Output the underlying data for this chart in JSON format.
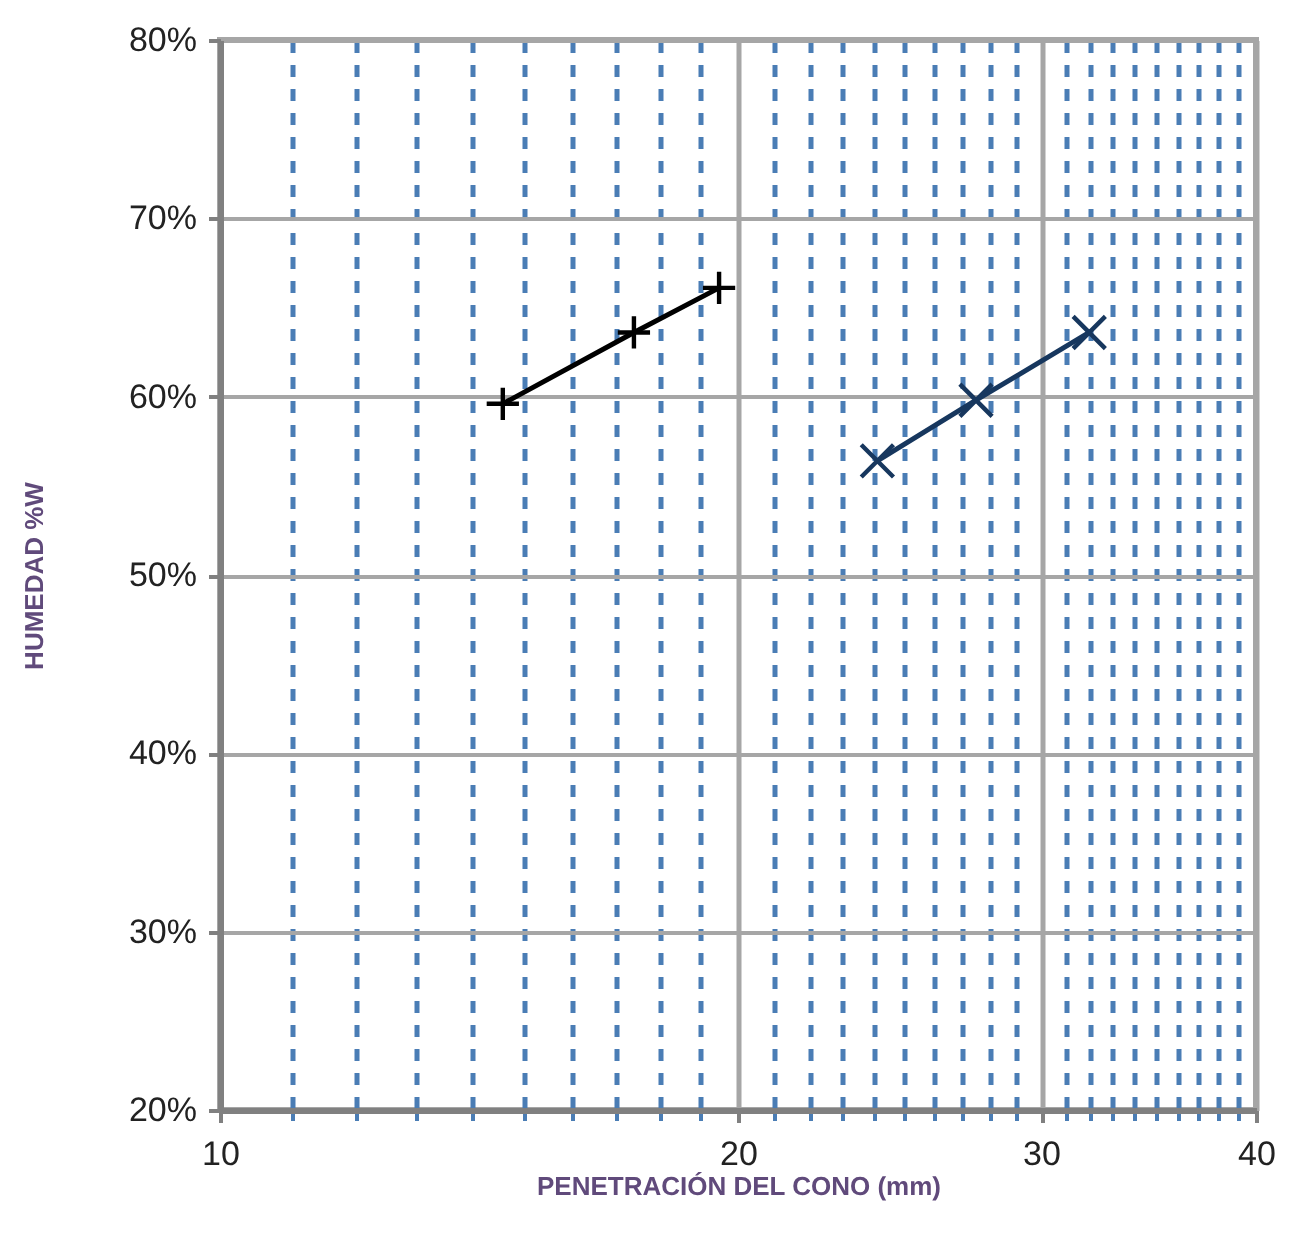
{
  "chart_data": {
    "type": "line",
    "xlabel": "PENETRACIÓN DEL CONO (mm)",
    "ylabel": "HUMEDAD %W",
    "log": "x",
    "grid": true,
    "xlim": [
      10,
      40
    ],
    "ylim": [
      20,
      80
    ],
    "xticks": [
      10,
      {
        "value": 11,
        "label": null
      },
      {
        "value": 12,
        "label": null
      },
      {
        "value": 13,
        "label": null
      },
      {
        "value": 14,
        "label": null
      },
      {
        "value": 15,
        "label": null
      },
      {
        "value": 16,
        "label": null
      },
      {
        "value": 17,
        "label": null
      },
      {
        "value": 18,
        "label": null
      },
      {
        "value": 19,
        "label": null
      },
      20,
      {
        "value": 21,
        "label": null
      },
      {
        "value": 22,
        "label": null
      },
      {
        "value": 23,
        "label": null
      },
      {
        "value": 24,
        "label": null
      },
      {
        "value": 25,
        "label": null
      },
      {
        "value": 26,
        "label": null
      },
      {
        "value": 27,
        "label": null
      },
      {
        "value": 28,
        "label": null
      },
      {
        "value": 29,
        "label": null
      },
      30,
      {
        "value": 31,
        "label": null
      },
      {
        "value": 32,
        "label": null
      },
      {
        "value": 33,
        "label": null
      },
      {
        "value": 34,
        "label": null
      },
      {
        "value": 35,
        "label": null
      },
      {
        "value": 36,
        "label": null
      },
      {
        "value": 37,
        "label": null
      },
      {
        "value": 38,
        "label": null
      },
      {
        "value": 39,
        "label": null
      },
      40
    ],
    "yticks": [
      {
        "value": 20,
        "label": "20%"
      },
      {
        "value": 30,
        "label": "30%"
      },
      {
        "value": 40,
        "label": "40%"
      },
      {
        "value": 50,
        "label": "50%"
      },
      {
        "value": 60,
        "label": "60%"
      },
      {
        "value": 70,
        "label": "70%"
      },
      {
        "value": 80,
        "label": "80%"
      }
    ],
    "series": [
      {
        "color": "#000000",
        "marker": "cross",
        "x": [
          14.6,
          17.4,
          19.5
        ],
        "values": [
          59.6,
          63.6,
          66.1
        ]
      },
      {
        "color": "#17375e",
        "marker": "x",
        "x": [
          24.1,
          27.5,
          32.0
        ],
        "values": [
          56.4,
          59.8,
          63.6
        ]
      }
    ]
  }
}
